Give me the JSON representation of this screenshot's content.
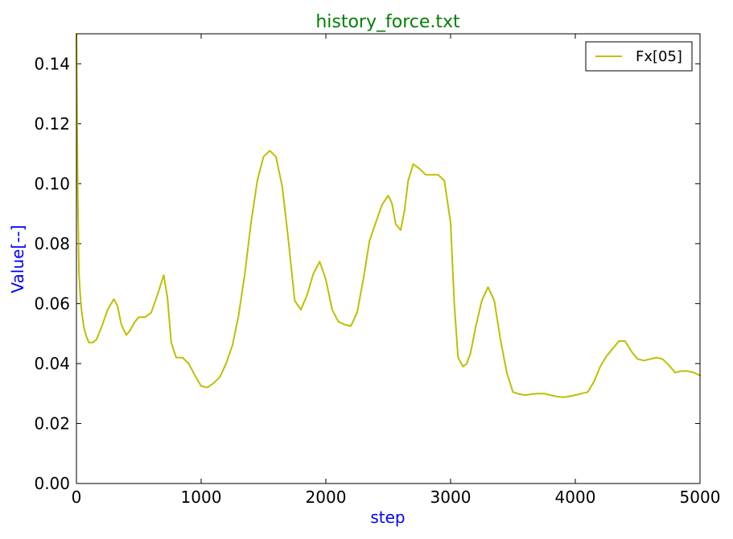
{
  "chart_data": {
    "type": "line",
    "title": "history_force.txt",
    "xlabel": "step",
    "ylabel": "Value[--]",
    "xlim": [
      0,
      5000
    ],
    "ylim": [
      0,
      0.15
    ],
    "xticks": [
      0,
      1000,
      2000,
      3000,
      4000,
      5000
    ],
    "xtick_labels": [
      "0",
      "1000",
      "2000",
      "3000",
      "4000",
      "5000"
    ],
    "yticks": [
      0,
      0.02,
      0.04,
      0.06,
      0.08,
      0.1,
      0.12,
      0.14
    ],
    "ytick_labels": [
      "0.00",
      "0.02",
      "0.04",
      "0.06",
      "0.08",
      "0.10",
      "0.12",
      "0.14"
    ],
    "grid": false,
    "legend_position": "top-right",
    "colors": {
      "title": "#008000",
      "axis_label": "#0000ff",
      "series": "#bfbf00"
    },
    "series": [
      {
        "name": "Fx[05]",
        "x": [
          0,
          10,
          20,
          30,
          40,
          60,
          80,
          100,
          130,
          160,
          200,
          250,
          300,
          330,
          360,
          400,
          430,
          470,
          500,
          550,
          600,
          650,
          700,
          730,
          760,
          800,
          850,
          900,
          950,
          1000,
          1050,
          1100,
          1150,
          1200,
          1250,
          1300,
          1350,
          1400,
          1450,
          1500,
          1550,
          1600,
          1650,
          1700,
          1750,
          1800,
          1850,
          1900,
          1950,
          2000,
          2050,
          2100,
          2150,
          2200,
          2250,
          2300,
          2350,
          2400,
          2450,
          2500,
          2530,
          2560,
          2600,
          2630,
          2660,
          2700,
          2750,
          2800,
          2850,
          2900,
          2950,
          3000,
          3030,
          3060,
          3100,
          3130,
          3160,
          3200,
          3250,
          3300,
          3350,
          3400,
          3450,
          3500,
          3550,
          3600,
          3650,
          3700,
          3750,
          3800,
          3850,
          3900,
          3950,
          4000,
          4050,
          4100,
          4150,
          4200,
          4250,
          4300,
          4350,
          4400,
          4450,
          4500,
          4550,
          4600,
          4650,
          4700,
          4750,
          4800,
          4850,
          4900,
          4950,
          5000
        ],
        "values": [
          0.15,
          0.1,
          0.07,
          0.063,
          0.058,
          0.052,
          0.049,
          0.047,
          0.047,
          0.048,
          0.052,
          0.058,
          0.0615,
          0.059,
          0.053,
          0.0495,
          0.051,
          0.054,
          0.0555,
          0.0555,
          0.057,
          0.063,
          0.0695,
          0.062,
          0.047,
          0.042,
          0.042,
          0.04,
          0.036,
          0.0325,
          0.032,
          0.0335,
          0.0355,
          0.04,
          0.046,
          0.056,
          0.07,
          0.087,
          0.101,
          0.109,
          0.111,
          0.109,
          0.099,
          0.081,
          0.061,
          0.058,
          0.063,
          0.07,
          0.074,
          0.068,
          0.058,
          0.054,
          0.053,
          0.0525,
          0.057,
          0.068,
          0.081,
          0.087,
          0.093,
          0.096,
          0.0935,
          0.0865,
          0.0845,
          0.091,
          0.101,
          0.1065,
          0.105,
          0.103,
          0.103,
          0.103,
          0.101,
          0.087,
          0.06,
          0.042,
          0.039,
          0.04,
          0.0435,
          0.052,
          0.061,
          0.0655,
          0.061,
          0.048,
          0.037,
          0.0305,
          0.0298,
          0.0295,
          0.0298,
          0.03,
          0.03,
          0.0295,
          0.029,
          0.0288,
          0.029,
          0.0295,
          0.03,
          0.0305,
          0.034,
          0.039,
          0.0425,
          0.045,
          0.0475,
          0.0475,
          0.044,
          0.0415,
          0.041,
          0.0415,
          0.042,
          0.0415,
          0.0395,
          0.037,
          0.0375,
          0.0375,
          0.037,
          0.036
        ]
      }
    ]
  }
}
